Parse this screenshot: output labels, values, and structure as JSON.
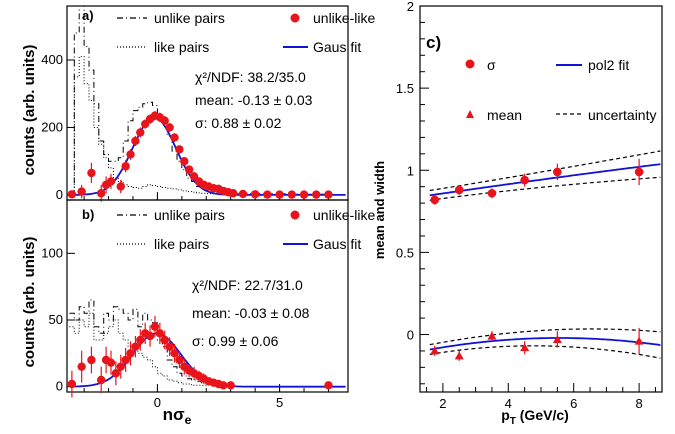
{
  "chart_data": [
    {
      "type": "histogram",
      "panel_label": "a)",
      "xlabel": "",
      "ylabel": "counts (arb. units)",
      "xlim": [
        -3.7,
        7.8
      ],
      "ylim": [
        -15,
        560
      ],
      "xticks": [
        0,
        5
      ],
      "yticks": [
        0,
        200,
        400
      ],
      "legend": [
        "unlike pairs",
        "like pairs",
        "unlike-like",
        "Gaus fit"
      ],
      "annotations": [
        "χ²/NDF: 38.2/35.0",
        "mean: -0.13 ±  0.03",
        "σ:  0.88 ±  0.02"
      ],
      "fit": {
        "amp": 230,
        "mean": -0.13,
        "sigma": 0.88
      },
      "unlike_pairs": {
        "x": [
          -3.5,
          -3.3,
          -3.1,
          -2.9,
          -2.7,
          -2.5,
          -2.3,
          -2.1,
          -1.9,
          -1.7,
          -1.5,
          -1.3,
          -1.1,
          -0.9,
          -0.7,
          -0.5,
          -0.3,
          -0.1,
          0.1,
          0.3,
          0.5,
          0.7,
          0.9,
          1.1,
          1.3,
          1.5,
          1.7,
          1.9,
          2.1,
          2.3,
          2.5,
          2.7,
          2.9,
          3.1,
          3.3,
          3.5,
          4.0,
          5.0,
          6.0,
          7.0
        ],
        "y": [
          10,
          480,
          560,
          440,
          370,
          270,
          160,
          120,
          100,
          100,
          110,
          160,
          220,
          250,
          260,
          270,
          275,
          265,
          240,
          210,
          175,
          130,
          100,
          75,
          50,
          40,
          25,
          20,
          15,
          12,
          8,
          8,
          6,
          6,
          5,
          5,
          4,
          3,
          2,
          2
        ]
      },
      "like_pairs": {
        "x": [
          -3.5,
          -3.3,
          -3.1,
          -2.9,
          -2.7,
          -2.5,
          -2.3,
          -2.1,
          -1.9,
          -1.7,
          -1.5,
          -1.3,
          -1.1,
          -0.9,
          -0.7,
          -0.5,
          -0.3,
          -0.1,
          0.1,
          0.3,
          0.5,
          0.7,
          0.9,
          1.1,
          1.3,
          1.5,
          1.7,
          1.9,
          2.1,
          2.3,
          2.5,
          3.0,
          4.0,
          5.0,
          6.0,
          7.0
        ],
        "y": [
          8,
          350,
          410,
          330,
          280,
          200,
          150,
          110,
          80,
          50,
          40,
          30,
          25,
          22,
          20,
          25,
          30,
          28,
          25,
          22,
          20,
          18,
          15,
          12,
          10,
          8,
          6,
          5,
          4,
          3,
          2,
          2,
          1,
          1,
          1,
          1
        ]
      },
      "unlike_like": {
        "x": [
          -3.5,
          -3.1,
          -2.7,
          -2.3,
          -2.1,
          -1.9,
          -1.5,
          -1.3,
          -1.1,
          -0.9,
          -0.7,
          -0.5,
          -0.3,
          -0.1,
          0.1,
          0.3,
          0.5,
          0.7,
          0.9,
          1.1,
          1.3,
          1.5,
          1.7,
          1.9,
          2.1,
          2.3,
          2.5,
          2.7,
          2.9,
          3.1,
          3.5,
          4.0,
          4.5,
          5.0,
          5.5,
          6.0,
          6.5,
          7.0
        ],
        "y": [
          2,
          10,
          65,
          5,
          30,
          40,
          25,
          85,
          120,
          160,
          185,
          210,
          225,
          235,
          230,
          220,
          200,
          170,
          135,
          100,
          75,
          55,
          40,
          30,
          25,
          20,
          18,
          12,
          8,
          5,
          3,
          2,
          1,
          1,
          1,
          1,
          1,
          1
        ],
        "err": [
          10,
          20,
          30,
          25,
          25,
          22,
          20,
          18,
          16,
          15,
          15,
          14,
          14,
          14,
          14,
          14,
          13,
          13,
          12,
          11,
          10,
          9,
          8,
          7,
          6,
          5,
          5,
          4,
          4,
          3,
          3,
          3,
          2,
          2,
          2,
          2,
          2,
          2
        ]
      }
    },
    {
      "type": "histogram",
      "panel_label": "b)",
      "xlabel": "nσe",
      "ylabel": "counts (arb. units)",
      "xlim": [
        -3.7,
        7.8
      ],
      "ylim": [
        -4,
        140
      ],
      "xticks": [
        0,
        5
      ],
      "xtick_labels": [
        "0",
        "5"
      ],
      "yticks": [
        0,
        50,
        100
      ],
      "legend": [
        "unlike pairs",
        "like pairs",
        "unlike-like",
        "Gaus fit"
      ],
      "annotations": [
        "χ²/NDF: 22.7/31.0",
        "mean: -0.03 ±  0.08",
        "σ:  0.99 ±  0.06"
      ],
      "fit": {
        "amp": 40,
        "mean": -0.03,
        "sigma": 0.99
      },
      "unlike_pairs": {
        "x": [
          -3.5,
          -3.3,
          -3.1,
          -2.9,
          -2.7,
          -2.5,
          -2.3,
          -2.1,
          -1.9,
          -1.7,
          -1.5,
          -1.3,
          -1.1,
          -0.9,
          -0.7,
          -0.5,
          -0.3,
          -0.1,
          0.1,
          0.3,
          0.5,
          0.7,
          0.9,
          1.1,
          1.3,
          1.5,
          1.7,
          1.9,
          2.1,
          2.3,
          2.5,
          3.0
        ],
        "y": [
          55,
          50,
          60,
          55,
          65,
          45,
          40,
          55,
          50,
          60,
          58,
          55,
          50,
          58,
          45,
          55,
          50,
          48,
          35,
          30,
          20,
          15,
          10,
          8,
          6,
          5,
          4,
          3,
          2,
          2,
          1,
          1
        ]
      },
      "like_pairs": {
        "x": [
          -3.5,
          -3.3,
          -3.1,
          -2.9,
          -2.7,
          -2.5,
          -2.3,
          -2.1,
          -1.9,
          -1.7,
          -1.5,
          -1.3,
          -1.1,
          -0.9,
          -0.7,
          -0.5,
          -0.3,
          -0.1,
          0.1,
          0.3,
          0.5,
          0.7,
          0.9,
          1.1,
          1.3,
          1.5,
          2.0
        ],
        "y": [
          45,
          40,
          50,
          45,
          55,
          35,
          35,
          40,
          45,
          50,
          40,
          35,
          30,
          28,
          25,
          22,
          20,
          15,
          10,
          8,
          5,
          4,
          3,
          2,
          2,
          1,
          1
        ]
      },
      "unlike_like": {
        "x": [
          -3.5,
          -3.1,
          -2.7,
          -2.3,
          -2.1,
          -1.9,
          -1.7,
          -1.5,
          -1.3,
          -1.1,
          -0.9,
          -0.7,
          -0.5,
          -0.3,
          -0.1,
          0.1,
          0.3,
          0.5,
          0.7,
          0.9,
          1.1,
          1.3,
          1.5,
          1.7,
          1.9,
          2.1,
          2.3,
          2.5,
          2.7,
          3.0,
          7.0
        ],
        "y": [
          2,
          15,
          20,
          5,
          20,
          18,
          10,
          15,
          20,
          25,
          30,
          35,
          40,
          38,
          45,
          40,
          35,
          30,
          25,
          20,
          15,
          12,
          10,
          8,
          6,
          4,
          3,
          2,
          1,
          1,
          1
        ],
        "err": [
          10,
          12,
          10,
          10,
          10,
          9,
          9,
          9,
          9,
          9,
          8,
          8,
          8,
          8,
          8,
          8,
          7,
          7,
          7,
          6,
          6,
          5,
          5,
          4,
          4,
          3,
          3,
          2,
          2,
          2,
          2
        ]
      }
    },
    {
      "type": "scatter",
      "panel_label": "c)",
      "xlabel": "pT (GeV/c)",
      "ylabel": "mean and width",
      "xlim": [
        1.3,
        8.7
      ],
      "ylim": [
        -0.35,
        2.0
      ],
      "xticks": [
        2,
        4,
        6,
        8
      ],
      "yticks": [
        0,
        0.5,
        1,
        1.5,
        2
      ],
      "ytick_labels": [
        "0",
        "0.5",
        "1",
        "1.5",
        "2"
      ],
      "legend": [
        "σ",
        "pol2 fit",
        "mean",
        "uncertainty"
      ],
      "sigma": {
        "x": [
          1.75,
          2.5,
          3.5,
          4.5,
          5.5,
          8.0
        ],
        "y": [
          0.82,
          0.88,
          0.86,
          0.94,
          0.99,
          0.99
        ],
        "err": [
          0.03,
          0.03,
          0.03,
          0.04,
          0.05,
          0.08
        ]
      },
      "mean": {
        "x": [
          1.75,
          2.5,
          3.5,
          4.5,
          5.5,
          8.0
        ],
        "y": [
          -0.1,
          -0.13,
          -0.01,
          -0.08,
          -0.03,
          -0.04
        ],
        "err": [
          0.03,
          0.03,
          0.03,
          0.04,
          0.05,
          0.08
        ]
      },
      "sigma_fit": {
        "a": 0.8,
        "b": 0.03,
        "c": -0.0003
      },
      "mean_fit": {
        "a": -0.16,
        "b": 0.05,
        "c": -0.0045
      },
      "band_halfwidth": {
        "start": 0.03,
        "end": 0.08
      }
    }
  ]
}
